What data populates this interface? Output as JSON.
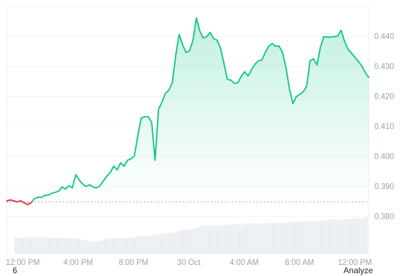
{
  "app": {
    "name": "crypto-price-chart"
  },
  "colors": {
    "up": "#16c784",
    "down": "#ea3943",
    "down_fill_opacity": 0.13,
    "grid": "#f0f3f6",
    "axis_border": "#e9ecf0",
    "tick_text": "#96a1ae",
    "dark_text": "#23272e",
    "volume": "#e9edf2",
    "baseline_dot": "#a6adb8",
    "background": "#ffffff"
  },
  "footer": {
    "date_label": "6",
    "analyze_label": "Analyze"
  },
  "chart_data": {
    "type": "area",
    "title": "24h price chart with previous-close baseline and volume strip",
    "grid": "horizontal",
    "legend": "none",
    "y_axis": {
      "side": "right",
      "tick_labels": [
        "0.440",
        "0.430",
        "0.420",
        "0.410",
        "0.400",
        "0.390",
        "0.380"
      ],
      "tick_values": [
        0.44,
        0.43,
        0.42,
        0.41,
        0.4,
        0.39,
        0.38
      ],
      "grid_values": [
        0.45,
        0.44,
        0.43,
        0.42,
        0.41,
        0.4,
        0.39,
        0.38
      ],
      "ylim": [
        0.3675,
        0.45
      ]
    },
    "x_axis": {
      "tick_labels": [
        "12:00 PM",
        "4:00 PM",
        "8:00 PM",
        "30 Oct",
        "4:00 AM",
        "8:00 AM",
        "12:00 PM"
      ]
    },
    "previous_close": 0.3848,
    "last_price": 0.4263,
    "high": 0.4461,
    "low": 0.3839,
    "series": [
      {
        "name": "price",
        "values": [
          0.3852,
          0.3855,
          0.3852,
          0.3848,
          0.3852,
          0.3845,
          0.3839,
          0.3845,
          0.3859,
          0.3864,
          0.3863,
          0.387,
          0.3871,
          0.3877,
          0.388,
          0.3884,
          0.3898,
          0.3891,
          0.3902,
          0.3895,
          0.3939,
          0.3921,
          0.3907,
          0.39,
          0.3905,
          0.3898,
          0.3895,
          0.3902,
          0.3918,
          0.3934,
          0.3946,
          0.3967,
          0.3955,
          0.3978,
          0.3967,
          0.3987,
          0.3992,
          0.4001,
          0.407,
          0.4128,
          0.4132,
          0.4132,
          0.4114,
          0.3987,
          0.4157,
          0.418,
          0.421,
          0.422,
          0.4245,
          0.4337,
          0.4406,
          0.4371,
          0.4346,
          0.4351,
          0.4387,
          0.4461,
          0.4417,
          0.4394,
          0.4399,
          0.4413,
          0.4392,
          0.4387,
          0.436,
          0.4309,
          0.4256,
          0.4254,
          0.4243,
          0.4245,
          0.4266,
          0.4282,
          0.4268,
          0.4289,
          0.4307,
          0.4318,
          0.4321,
          0.4346,
          0.4367,
          0.4376,
          0.4367,
          0.4367,
          0.4346,
          0.4295,
          0.4226,
          0.4176,
          0.4199,
          0.4206,
          0.4215,
          0.4233,
          0.4318,
          0.4325,
          0.4305,
          0.4364,
          0.4399,
          0.4397,
          0.4397,
          0.4399,
          0.4401,
          0.442,
          0.4383,
          0.4357,
          0.4344,
          0.433,
          0.4316,
          0.4302,
          0.4279,
          0.4263
        ]
      }
    ],
    "volume_profile_relative": [
      0.43,
      0.43,
      0.435,
      0.435,
      0.435,
      0.43,
      0.43,
      0.43,
      0.43,
      0.42,
      0.39,
      0.35,
      0.33,
      0.36,
      0.41,
      0.43,
      0.42,
      0.435,
      0.45,
      0.48,
      0.485,
      0.51,
      0.53,
      0.55,
      0.585,
      0.63,
      0.655,
      0.67,
      0.745,
      0.76,
      0.76,
      0.77,
      0.78,
      0.8,
      0.78,
      0.81,
      0.83,
      0.81,
      0.83,
      0.85,
      0.83,
      0.85,
      0.85,
      0.87,
      0.88,
      0.88,
      0.89,
      0.92,
      0.93,
      0.91,
      0.94,
      0.95,
      0.95,
      1.0
    ]
  }
}
